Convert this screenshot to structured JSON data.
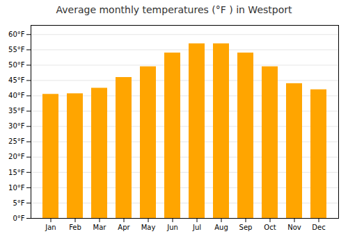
{
  "chart_data": {
    "type": "bar",
    "title": "Average monthly temperatures (°F ) in Westport",
    "categories": [
      "Jan",
      "Feb",
      "Mar",
      "Apr",
      "May",
      "Jun",
      "Jul",
      "Aug",
      "Sep",
      "Oct",
      "Nov",
      "Dec"
    ],
    "values": [
      40.5,
      40.7,
      42.5,
      46.0,
      49.5,
      54.0,
      57.0,
      57.0,
      54.0,
      49.5,
      44.0,
      42.0
    ],
    "color": "#FFA500",
    "ylim": [
      0,
      63
    ],
    "yticks": [
      {
        "value": 0,
        "label": "0°F"
      },
      {
        "value": 5,
        "label": "5°F"
      },
      {
        "value": 10,
        "label": "10°F"
      },
      {
        "value": 15,
        "label": "15°F"
      },
      {
        "value": 20,
        "label": "20°F"
      },
      {
        "value": 25,
        "label": "25°F"
      },
      {
        "value": 30,
        "label": "30°F"
      },
      {
        "value": 35,
        "label": "35°F"
      },
      {
        "value": 40,
        "label": "40°F"
      },
      {
        "value": 45,
        "label": "45°F"
      },
      {
        "value": 50,
        "label": "50°F"
      },
      {
        "value": 55,
        "label": "55°F"
      },
      {
        "value": 60,
        "label": "60°F"
      }
    ],
    "grid": true
  }
}
